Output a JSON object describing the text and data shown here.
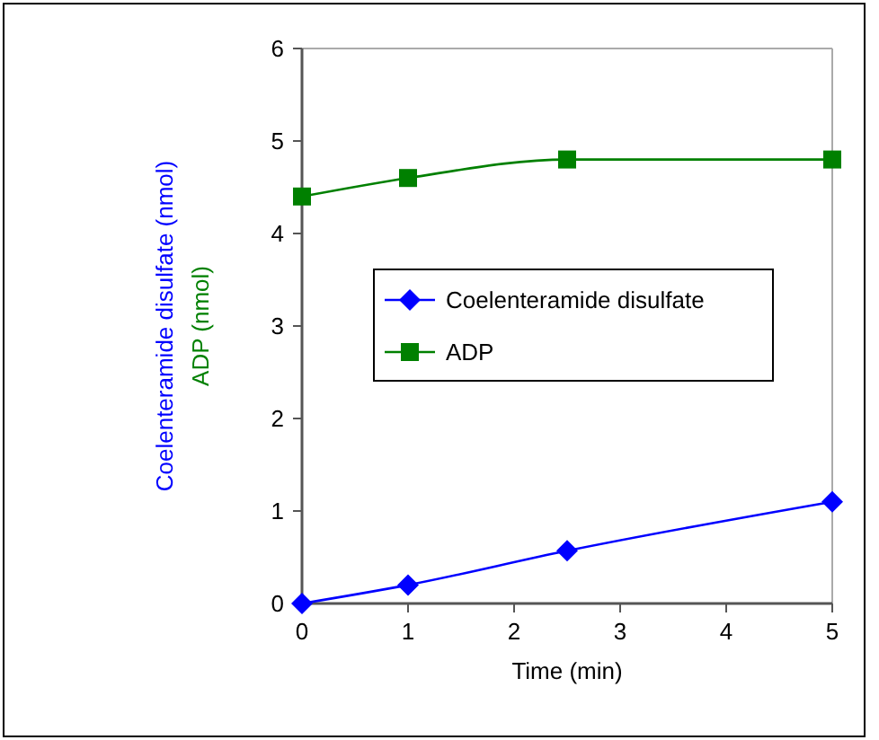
{
  "chart_data": {
    "type": "line",
    "xlabel": "Time (min)",
    "ylabel": "Coelenteramide disulfate (nmol)",
    "y2label": "ADP (nmol)",
    "x": [
      0,
      1,
      2.5,
      5
    ],
    "series": [
      {
        "name": "Coelenteramide disulfate",
        "color": "#0000ff",
        "marker": "diamond",
        "values": [
          0,
          0.2,
          0.57,
          1.1
        ]
      },
      {
        "name": "ADP",
        "color": "#008000",
        "marker": "square",
        "values": [
          4.4,
          4.6,
          4.8,
          4.8
        ]
      }
    ],
    "xlim": [
      0,
      5
    ],
    "xticks": [
      0,
      1,
      2,
      3,
      4,
      5
    ],
    "ylim": [
      0,
      6
    ],
    "yticks": [
      0,
      1,
      2,
      3,
      4,
      5,
      6
    ],
    "grid": false,
    "legend": "center right",
    "line_style": "solid"
  }
}
